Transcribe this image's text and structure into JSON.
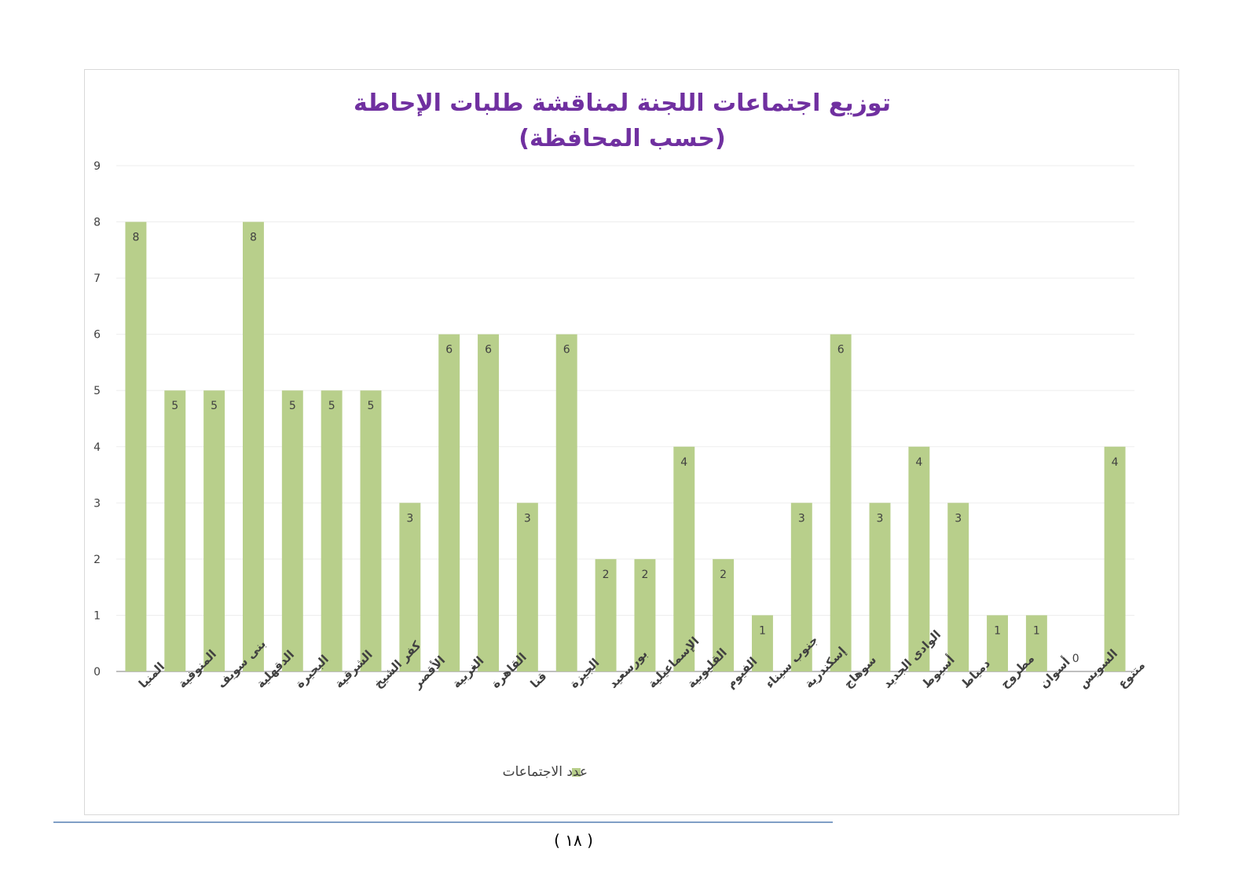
{
  "chart_data": {
    "type": "bar",
    "title": "توزيع اجتماعات اللجنة لمناقشة طلبات الإحاطة",
    "subtitle": "(حسب المحافظة)",
    "categories": [
      "المنيا",
      "المنوفية",
      "بنى سويف",
      "الدقهلية",
      "البحيرة",
      "الشرقية",
      "كفر الشيخ",
      "الأقصر",
      "الغربية",
      "القاهرة",
      "قنا",
      "الجيزة",
      "بورسعيد",
      "الإسماعيلية",
      "القليوبية",
      "الفيوم",
      "جنوب سيناء",
      "إسكندرية",
      "سوهاج",
      "الوادى الجديد",
      "أسيوط",
      "دمياط",
      "مطروح",
      "أسوان",
      "السويس",
      "متنوع"
    ],
    "series": [
      {
        "name": "عدد الاجتماعات",
        "values": [
          8,
          5,
          5,
          8,
          5,
          5,
          5,
          3,
          6,
          6,
          3,
          6,
          2,
          2,
          4,
          2,
          1,
          3,
          6,
          3,
          4,
          3,
          1,
          1,
          0,
          4
        ]
      }
    ],
    "ylim": [
      0,
      9
    ],
    "yticks": [
      0,
      1,
      2,
      3,
      4,
      5,
      6,
      7,
      8,
      9
    ],
    "grid": true,
    "data_labels": true,
    "legend_position": "bottom",
    "colors": {
      "bar": "#b8cf8b",
      "title": "#7030a0",
      "grid": "#eeeeee",
      "axis": "#bfbfbf",
      "text": "#404040"
    }
  },
  "footer": {
    "page_number": "( ١٨ )"
  }
}
